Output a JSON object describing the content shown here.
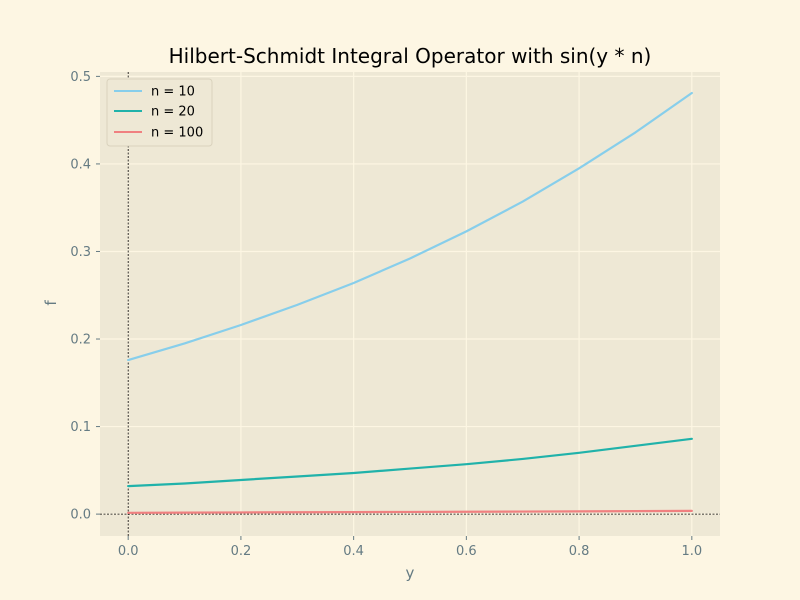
{
  "chart_data": {
    "type": "line",
    "title": "Hilbert-Schmidt Integral Operator with sin(y * n)",
    "xlabel": "y",
    "ylabel": "f",
    "xlim": [
      -0.05,
      1.05
    ],
    "ylim": [
      -0.025,
      0.505
    ],
    "xticks": [
      0.0,
      0.2,
      0.4,
      0.6,
      0.8,
      1.0
    ],
    "xtick_labels": [
      "0.0",
      "0.2",
      "0.4",
      "0.6",
      "0.8",
      "1.0"
    ],
    "yticks": [
      0.0,
      0.1,
      0.2,
      0.3,
      0.4,
      0.5
    ],
    "ytick_labels": [
      "0.0",
      "0.1",
      "0.2",
      "0.3",
      "0.4",
      "0.5"
    ],
    "grid": true,
    "legend_position": "top-left",
    "reference_lines": {
      "x": 0,
      "y": 0
    },
    "x": [
      0.0,
      0.1,
      0.2,
      0.3,
      0.4,
      0.5,
      0.6,
      0.7,
      0.8,
      0.9,
      1.0
    ],
    "series": [
      {
        "name": "n = 10",
        "color": "#87ceeb",
        "values": [
          0.176,
          0.195,
          0.216,
          0.239,
          0.264,
          0.292,
          0.323,
          0.357,
          0.395,
          0.436,
          0.481
        ]
      },
      {
        "name": "n = 20",
        "color": "#20b2aa",
        "values": [
          0.032,
          0.035,
          0.039,
          0.043,
          0.047,
          0.052,
          0.057,
          0.063,
          0.07,
          0.078,
          0.086
        ]
      },
      {
        "name": "n = 100",
        "color": "#f08080",
        "values": [
          0.0015,
          0.0017,
          0.0019,
          0.0021,
          0.0023,
          0.0025,
          0.0027,
          0.0029,
          0.0031,
          0.0034,
          0.0037
        ]
      }
    ]
  }
}
